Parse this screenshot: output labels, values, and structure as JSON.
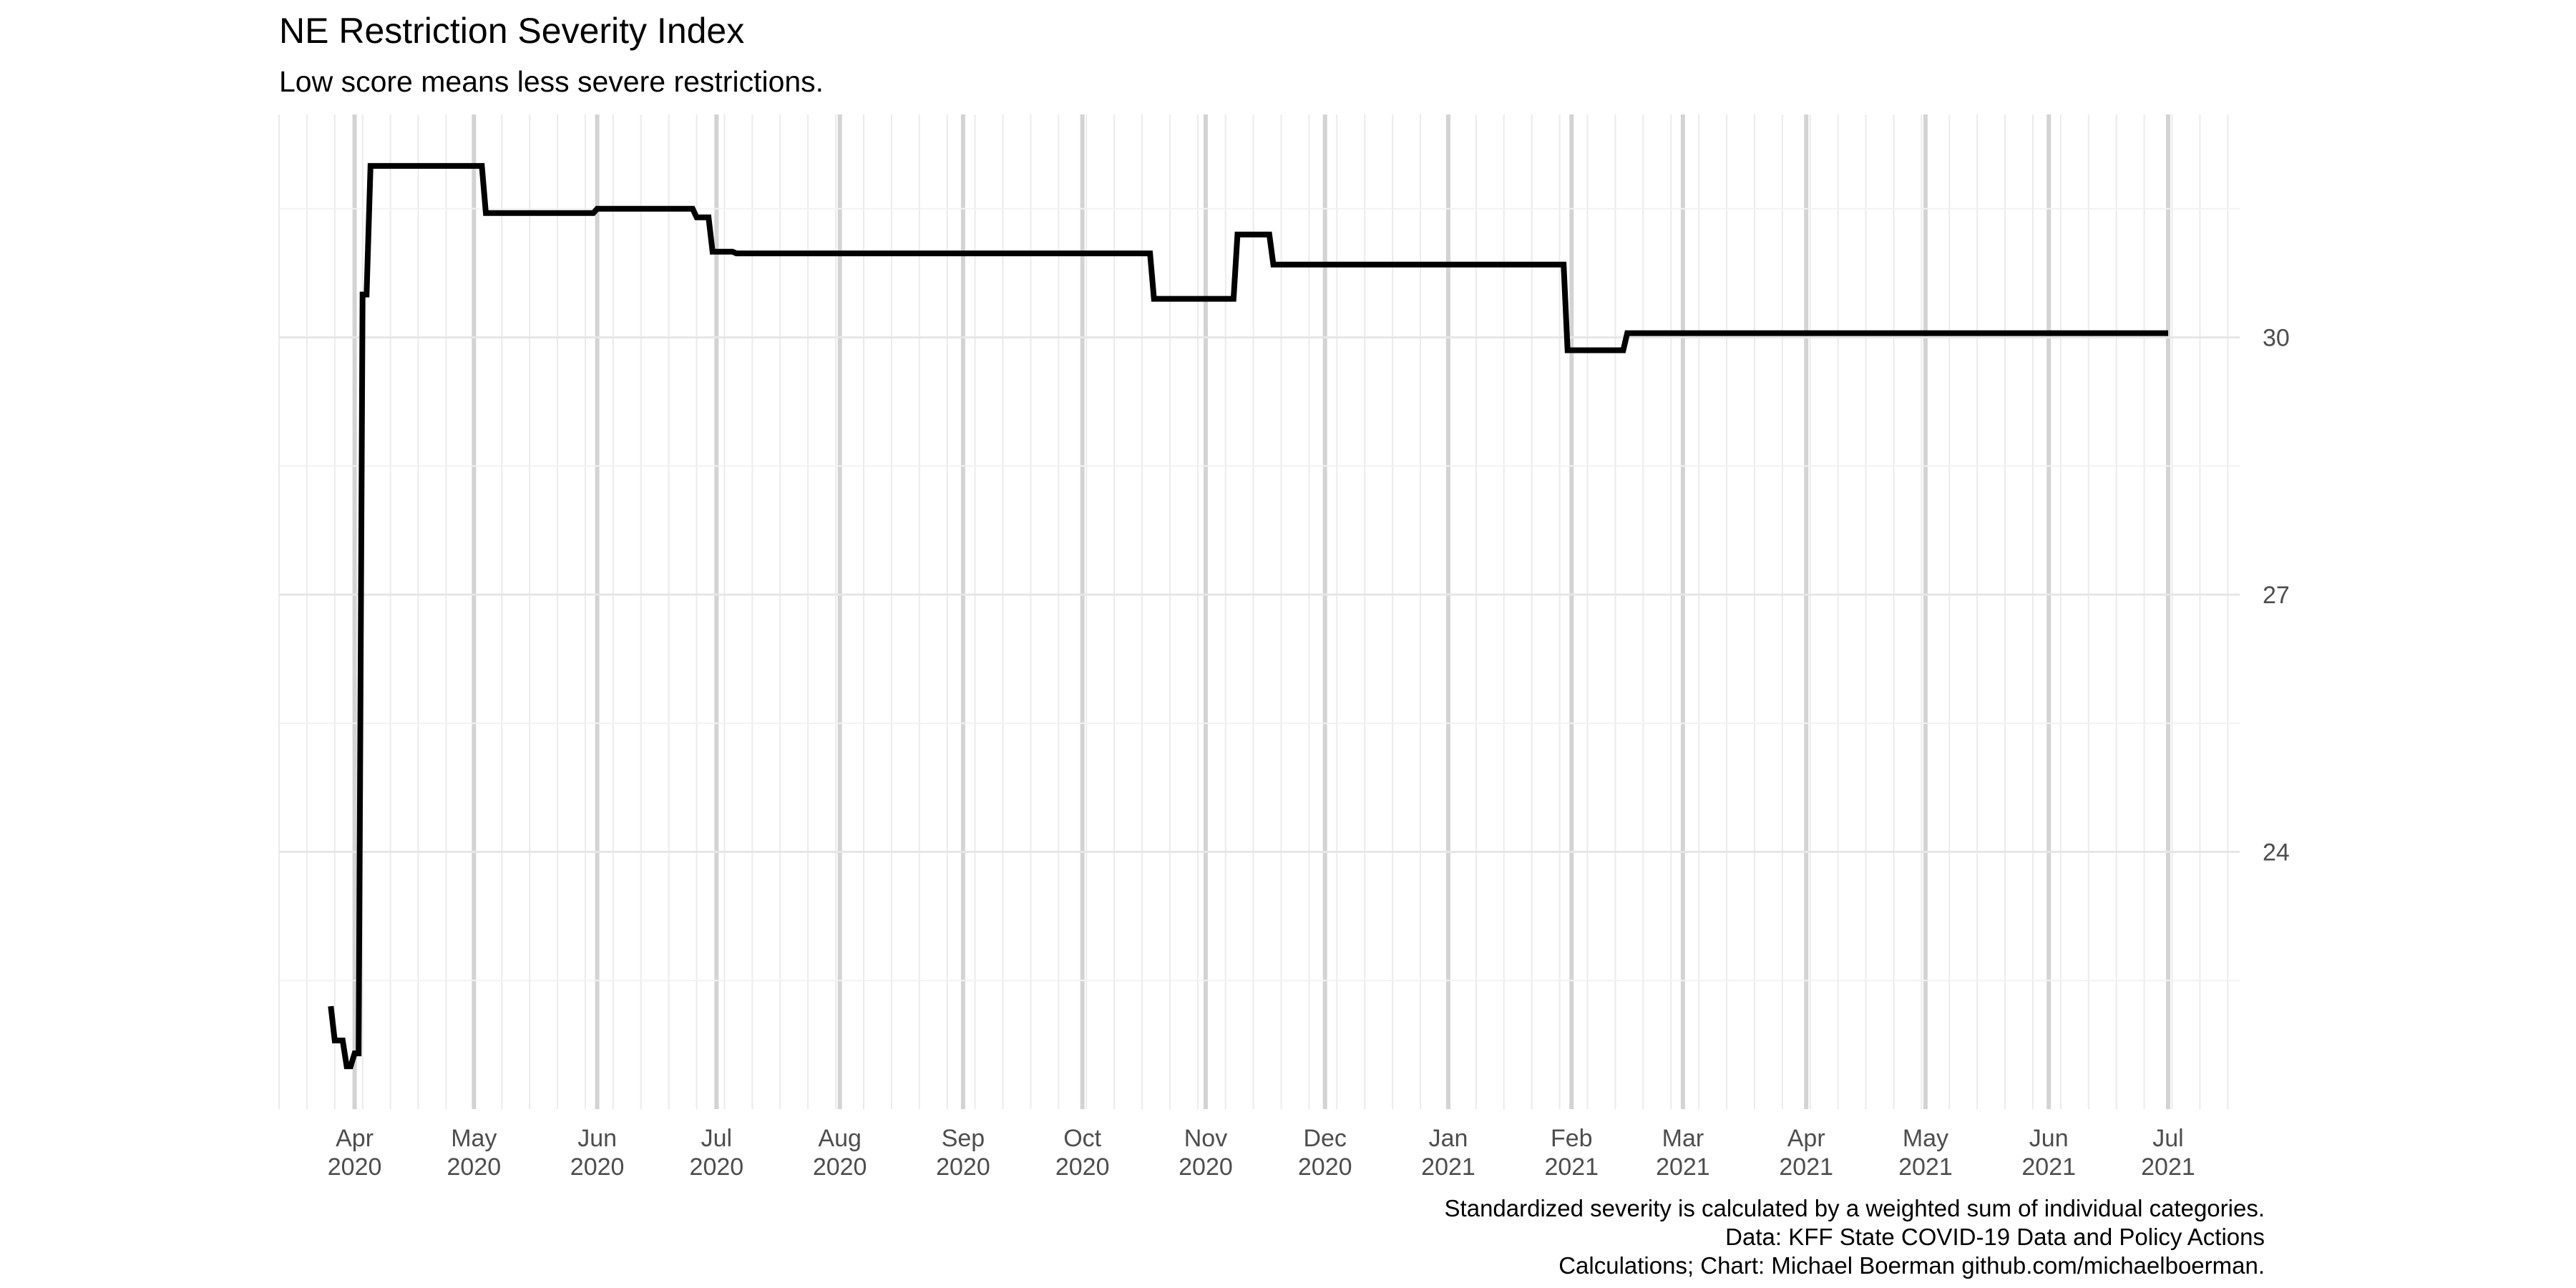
{
  "chart_data": {
    "type": "line",
    "title": "NE Restriction Severity Index",
    "subtitle": "Low score means less severe restrictions.",
    "caption": [
      "Standardized severity is calculated by a weighted sum of individual categories.",
      "Data: KFF State COVID-19 Data and Policy Actions",
      "Calculations; Chart: Michael Boerman github.com/michaelboerman."
    ],
    "xlabel": "",
    "ylabel": "",
    "y_axis_position": "right",
    "ylim": [
      21.0,
      32.6
    ],
    "xlim": [
      "2020-03-13",
      "2021-07-19"
    ],
    "y_ticks": [
      24,
      27,
      30
    ],
    "x_ticks": [
      {
        "date": "2020-04-01",
        "label": [
          "Apr",
          "2020"
        ]
      },
      {
        "date": "2020-05-01",
        "label": [
          "May",
          "2020"
        ]
      },
      {
        "date": "2020-06-01",
        "label": [
          "Jun",
          "2020"
        ]
      },
      {
        "date": "2020-07-01",
        "label": [
          "Jul",
          "2020"
        ]
      },
      {
        "date": "2020-08-01",
        "label": [
          "Aug",
          "2020"
        ]
      },
      {
        "date": "2020-09-01",
        "label": [
          "Sep",
          "2020"
        ]
      },
      {
        "date": "2020-10-01",
        "label": [
          "Oct",
          "2020"
        ]
      },
      {
        "date": "2020-11-01",
        "label": [
          "Nov",
          "2020"
        ]
      },
      {
        "date": "2020-12-01",
        "label": [
          "Dec",
          "2020"
        ]
      },
      {
        "date": "2021-01-01",
        "label": [
          "Jan",
          "2021"
        ]
      },
      {
        "date": "2021-02-01",
        "label": [
          "Feb",
          "2021"
        ]
      },
      {
        "date": "2021-03-01",
        "label": [
          "Mar",
          "2021"
        ]
      },
      {
        "date": "2021-04-01",
        "label": [
          "Apr",
          "2021"
        ]
      },
      {
        "date": "2021-05-01",
        "label": [
          "May",
          "2021"
        ]
      },
      {
        "date": "2021-06-01",
        "label": [
          "Jun",
          "2021"
        ]
      },
      {
        "date": "2021-07-01",
        "label": [
          "Jul",
          "2021"
        ]
      }
    ],
    "grid": true,
    "line_color": "#000000",
    "series": [
      {
        "points": [
          {
            "x": "2020-03-26",
            "y": 22.2
          },
          {
            "x": "2020-03-27",
            "y": 21.8
          },
          {
            "x": "2020-03-29",
            "y": 21.8
          },
          {
            "x": "2020-03-30",
            "y": 21.5
          },
          {
            "x": "2020-03-31",
            "y": 21.5
          },
          {
            "x": "2020-04-01",
            "y": 21.65
          },
          {
            "x": "2020-04-02",
            "y": 21.65
          },
          {
            "x": "2020-04-03",
            "y": 30.5
          },
          {
            "x": "2020-04-04",
            "y": 30.5
          },
          {
            "x": "2020-04-05",
            "y": 32.0
          },
          {
            "x": "2020-05-03",
            "y": 32.0
          },
          {
            "x": "2020-05-04",
            "y": 31.45
          },
          {
            "x": "2020-05-31",
            "y": 31.45
          },
          {
            "x": "2020-06-01",
            "y": 31.5
          },
          {
            "x": "2020-06-25",
            "y": 31.5
          },
          {
            "x": "2020-06-26",
            "y": 31.4
          },
          {
            "x": "2020-06-29",
            "y": 31.4
          },
          {
            "x": "2020-06-30",
            "y": 31.0
          },
          {
            "x": "2020-07-05",
            "y": 31.0
          },
          {
            "x": "2020-07-06",
            "y": 30.98
          },
          {
            "x": "2020-10-18",
            "y": 30.98
          },
          {
            "x": "2020-10-19",
            "y": 30.45
          },
          {
            "x": "2020-11-08",
            "y": 30.45
          },
          {
            "x": "2020-11-09",
            "y": 31.2
          },
          {
            "x": "2020-11-17",
            "y": 31.2
          },
          {
            "x": "2020-11-18",
            "y": 30.85
          },
          {
            "x": "2021-01-30",
            "y": 30.85
          },
          {
            "x": "2021-01-31",
            "y": 29.85
          },
          {
            "x": "2021-02-14",
            "y": 29.85
          },
          {
            "x": "2021-02-15",
            "y": 30.05
          },
          {
            "x": "2021-07-01",
            "y": 30.05
          }
        ]
      }
    ]
  }
}
